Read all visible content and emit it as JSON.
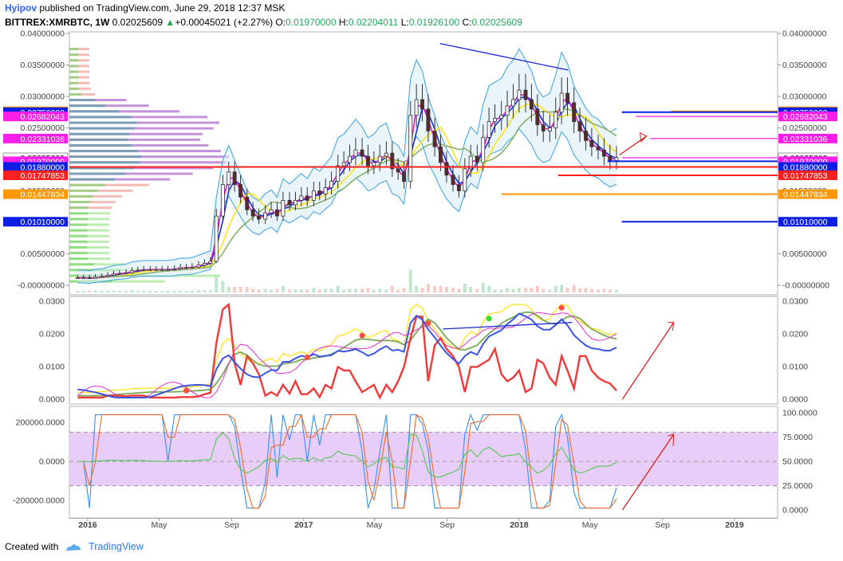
{
  "header": {
    "author": "Hyipov",
    "published": "published on TradingView.com, June 29, 2018 12:37 MSK",
    "symbol": "BITTREX:XMRBTC, 1W",
    "last": "0.02025609",
    "change": "+0.00045021 (+2.27%)",
    "o_label": "O:",
    "o": "0.01970000",
    "h_label": "H:",
    "h": "0.02204011",
    "l_label": "L:",
    "l": "0.01926100",
    "c_label": "C:",
    "c": "0.02025609"
  },
  "footer": {
    "created_with": "Created with",
    "brand": "TradingView"
  },
  "colors": {
    "orange": "#ff9800",
    "blue": "#0d1fe6",
    "magenta": "#ff1ee8",
    "red": "#ff1f1f",
    "white": "#ffffff",
    "green": "#26a65b"
  },
  "chart_data": [
    {
      "type": "candlestick",
      "panel": "price",
      "x_axis_labels": [
        "2016",
        "May",
        "Sep",
        "2017",
        "May",
        "Sep",
        "2018",
        "May",
        "Sep",
        "2019"
      ],
      "ylim": [
        -0.0005,
        0.04
      ],
      "y_ticks": [
        "0.04000000",
        "0.03500000",
        "0.03000000",
        "0.02500000",
        "0.02000000",
        "0.01500000",
        "0.01000000",
        "0.00500000",
        "-0.00000000"
      ],
      "y_ticks_values": [
        0.04,
        0.035,
        0.03,
        0.025,
        0.02,
        0.015,
        0.01,
        0.005,
        0.0
      ],
      "price_tags": [
        {
          "text": "0.02763500",
          "value": 0.027635,
          "color": "orange"
        },
        {
          "text": "0.02750000",
          "value": 0.0275,
          "color": "blue"
        },
        {
          "text": "0.02682043",
          "value": 0.02682043,
          "color": "magenta"
        },
        {
          "text": "0.02331036",
          "value": 0.02331036,
          "color": "magenta"
        },
        {
          "text": "0.02025609",
          "value": 0.02025609,
          "color": "white"
        },
        {
          "text": "0.01970000",
          "value": 0.0197,
          "color": "magenta"
        },
        {
          "text": "0.01880000",
          "value": 0.0188,
          "color": "blue"
        },
        {
          "text": "0.01747853",
          "value": 0.01747853,
          "color": "red"
        },
        {
          "text": "0.01447834",
          "value": 0.01447834,
          "color": "orange"
        },
        {
          "text": "0.01010000",
          "value": 0.0101,
          "color": "blue"
        }
      ],
      "horizontal_levels": [
        {
          "value": 0.027635,
          "color": "orange",
          "from": 0.85
        },
        {
          "value": 0.0275,
          "color": "blue",
          "from": 0.78
        },
        {
          "value": 0.02682043,
          "color": "magenta",
          "from": 0.8
        },
        {
          "value": 0.02331036,
          "color": "magenta",
          "from": 0.82
        },
        {
          "value": 0.02025609,
          "color": "magenta",
          "from": 0.78
        },
        {
          "value": 0.0197,
          "color": "blue",
          "from": 0.76
        },
        {
          "value": 0.0188,
          "color": "red",
          "from": 0.0
        },
        {
          "value": 0.01747853,
          "color": "red",
          "from": 0.69
        },
        {
          "value": 0.01447834,
          "color": "orange",
          "from": 0.61
        },
        {
          "value": 0.0101,
          "color": "blue",
          "from": 0.78
        }
      ],
      "close_series": [
        0.0012,
        0.0012,
        0.0011,
        0.0013,
        0.0014,
        0.0016,
        0.0018,
        0.0019,
        0.002,
        0.0023,
        0.0024,
        0.0025,
        0.0025,
        0.0025,
        0.0025,
        0.0025,
        0.0026,
        0.0028,
        0.0028,
        0.0029,
        0.0032,
        0.0035,
        0.0038,
        0.011,
        0.016,
        0.018,
        0.016,
        0.014,
        0.012,
        0.011,
        0.0105,
        0.0115,
        0.012,
        0.011,
        0.0135,
        0.0128,
        0.0135,
        0.0142,
        0.0135,
        0.015,
        0.0145,
        0.0155,
        0.0165,
        0.019,
        0.0195,
        0.0205,
        0.0215,
        0.0205,
        0.019,
        0.0195,
        0.0205,
        0.021,
        0.0185,
        0.018,
        0.0165,
        0.027,
        0.0295,
        0.028,
        0.0245,
        0.022,
        0.0195,
        0.0175,
        0.016,
        0.015,
        0.0185,
        0.0205,
        0.0195,
        0.0235,
        0.026,
        0.0265,
        0.027,
        0.0285,
        0.0295,
        0.031,
        0.0295,
        0.028,
        0.0255,
        0.0245,
        0.025,
        0.0275,
        0.0305,
        0.029,
        0.026,
        0.0245,
        0.023,
        0.022,
        0.0215,
        0.0205,
        0.0198,
        0.0203
      ],
      "close_series_start": "2015-12",
      "close_series_end": "2018-06",
      "trendline": {
        "from": [
          0.0384,
          "2017-08"
        ],
        "to": [
          0.0342,
          "2018-03"
        ]
      }
    },
    {
      "type": "line",
      "panel": "oscillator-1",
      "ylim": [
        0.0,
        0.03
      ],
      "y_ticks": [
        "0.0300",
        "0.0200",
        "0.0100",
        "0.0000"
      ],
      "y_ticks_values": [
        0.03,
        0.02,
        0.01,
        0.0
      ]
    },
    {
      "type": "line",
      "panel": "oscillator-2",
      "left_ticks": [
        "200000.0000",
        "0.0000",
        "-200000.0000"
      ],
      "left_ticks_values": [
        200000,
        0,
        -200000
      ],
      "right_ticks": [
        "100.0000",
        "75.0000",
        "50.0000",
        "25.0000",
        "0.0000"
      ],
      "right_ticks_values": [
        100,
        75,
        50,
        25,
        0
      ],
      "band": [
        25,
        80
      ]
    }
  ]
}
